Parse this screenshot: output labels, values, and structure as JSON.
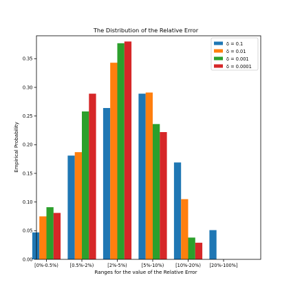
{
  "chart_data": {
    "type": "bar",
    "title": "The Distribution of the Relative Error",
    "xlabel": "Ranges for the value of the Relative Error",
    "ylabel": "Empirical Probability",
    "categories": [
      "[0%-0.5%)",
      "[0.5%-2%)",
      "[2%-5%)",
      "[5%-10%)",
      "[10%-20%)",
      "[20%-100%]"
    ],
    "ylim": [
      0,
      0.39
    ],
    "yticks": [
      "0.00",
      "0.05",
      "0.10",
      "0.15",
      "0.20",
      "0.25",
      "0.30",
      "0.35"
    ],
    "grid": false,
    "legend_position": "top-right",
    "series": [
      {
        "name": "δ = 0.1",
        "color": "#1f77b4",
        "values": [
          0.047,
          0.181,
          0.264,
          0.289,
          0.169,
          0.051
        ]
      },
      {
        "name": "δ = 0.01",
        "color": "#ff7f0e",
        "values": [
          0.075,
          0.187,
          0.343,
          0.291,
          0.105,
          0.0
        ]
      },
      {
        "name": "δ = 0.001",
        "color": "#2ca02c",
        "values": [
          0.091,
          0.258,
          0.377,
          0.236,
          0.038,
          0.0
        ]
      },
      {
        "name": "δ = 0.0001",
        "color": "#d62728",
        "values": [
          0.081,
          0.289,
          0.38,
          0.222,
          0.029,
          0.0
        ]
      }
    ]
  }
}
